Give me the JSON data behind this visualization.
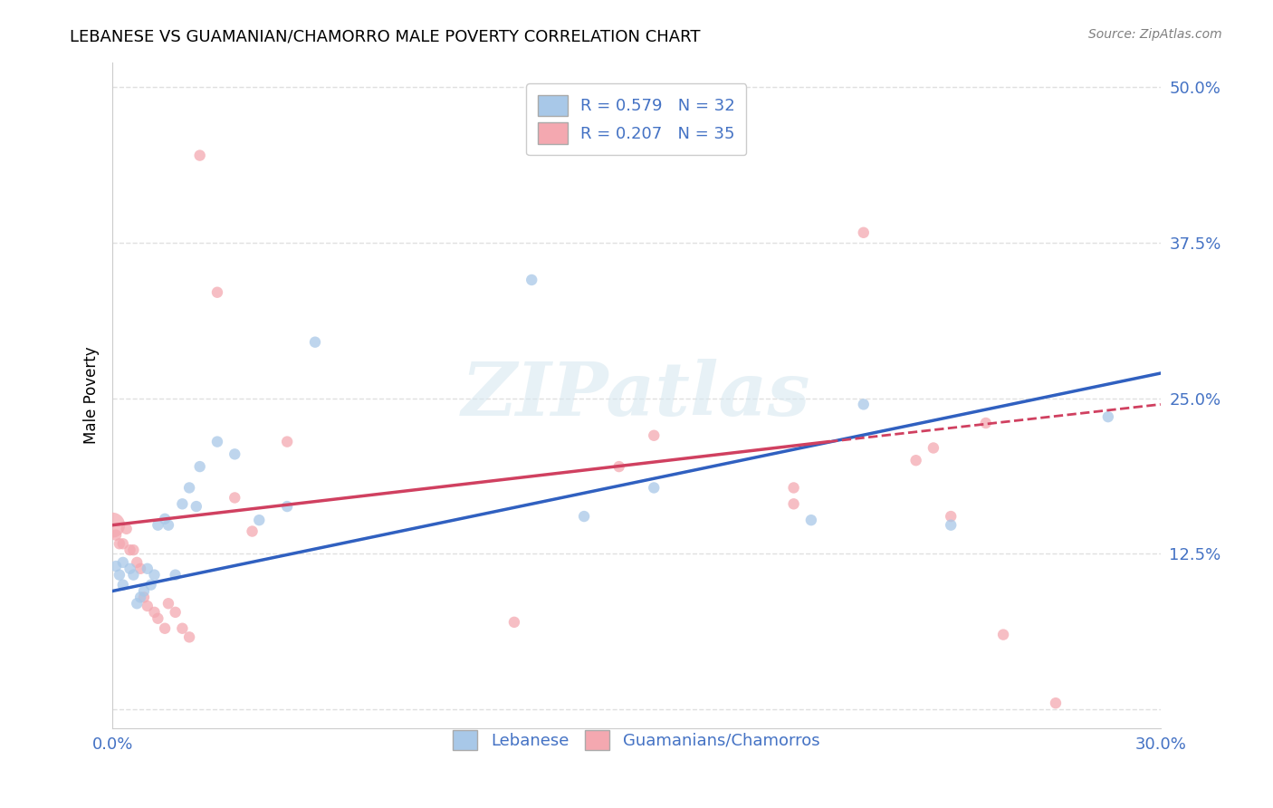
{
  "title": "LEBANESE VS GUAMANIAN/CHAMORRO MALE POVERTY CORRELATION CHART",
  "source": "Source: ZipAtlas.com",
  "ylabel": "Male Poverty",
  "xlim": [
    0.0,
    0.3
  ],
  "ylim": [
    -0.015,
    0.52
  ],
  "yticks": [
    0.0,
    0.125,
    0.25,
    0.375,
    0.5
  ],
  "ytick_labels": [
    "",
    "12.5%",
    "25.0%",
    "37.5%",
    "50.0%"
  ],
  "xtick_labels": [
    "0.0%",
    "30.0%"
  ],
  "grid_color": "#e0e0e0",
  "bg_color": "#ffffff",
  "blue_color": "#a8c8e8",
  "pink_color": "#f4a8b0",
  "blue_line_color": "#3060c0",
  "pink_line_color": "#d04060",
  "label_color": "#4472c4",
  "title_color": "#000000",
  "source_color": "#808080",
  "lebanese_label": "Lebanese",
  "guam_label": "Guamanians/Chamorros",
  "lebanese_x": [
    0.001,
    0.002,
    0.003,
    0.003,
    0.005,
    0.006,
    0.007,
    0.008,
    0.009,
    0.01,
    0.011,
    0.012,
    0.013,
    0.015,
    0.016,
    0.018,
    0.02,
    0.022,
    0.024,
    0.025,
    0.03,
    0.035,
    0.042,
    0.05,
    0.058,
    0.12,
    0.135,
    0.155,
    0.2,
    0.215,
    0.24,
    0.285
  ],
  "lebanese_y": [
    0.115,
    0.108,
    0.1,
    0.118,
    0.113,
    0.108,
    0.085,
    0.09,
    0.095,
    0.113,
    0.1,
    0.108,
    0.148,
    0.153,
    0.148,
    0.108,
    0.165,
    0.178,
    0.163,
    0.195,
    0.215,
    0.205,
    0.152,
    0.163,
    0.295,
    0.345,
    0.155,
    0.178,
    0.152,
    0.245,
    0.148,
    0.235
  ],
  "guam_x": [
    0.0,
    0.001,
    0.002,
    0.003,
    0.004,
    0.005,
    0.006,
    0.007,
    0.008,
    0.009,
    0.01,
    0.012,
    0.013,
    0.015,
    0.016,
    0.018,
    0.02,
    0.022,
    0.025,
    0.03,
    0.035,
    0.04,
    0.05,
    0.115,
    0.145,
    0.155,
    0.195,
    0.195,
    0.215,
    0.23,
    0.235,
    0.24,
    0.25,
    0.255,
    0.27
  ],
  "guam_y": [
    0.148,
    0.14,
    0.133,
    0.133,
    0.145,
    0.128,
    0.128,
    0.118,
    0.113,
    0.09,
    0.083,
    0.078,
    0.073,
    0.065,
    0.085,
    0.078,
    0.065,
    0.058,
    0.445,
    0.335,
    0.17,
    0.143,
    0.215,
    0.07,
    0.195,
    0.22,
    0.178,
    0.165,
    0.383,
    0.2,
    0.21,
    0.155,
    0.23,
    0.06,
    0.005
  ],
  "guam_size_large": 0,
  "line_leb_x0": 0.0,
  "line_leb_x1": 0.3,
  "line_leb_y0": 0.095,
  "line_leb_y1": 0.27,
  "line_guam_x0": 0.0,
  "line_guam_x1": 0.205,
  "line_guam_y0": 0.148,
  "line_guam_y1": 0.215,
  "line_guam_dash_x0": 0.205,
  "line_guam_dash_x1": 0.3,
  "line_guam_dash_y0": 0.215,
  "line_guam_dash_y1": 0.245
}
